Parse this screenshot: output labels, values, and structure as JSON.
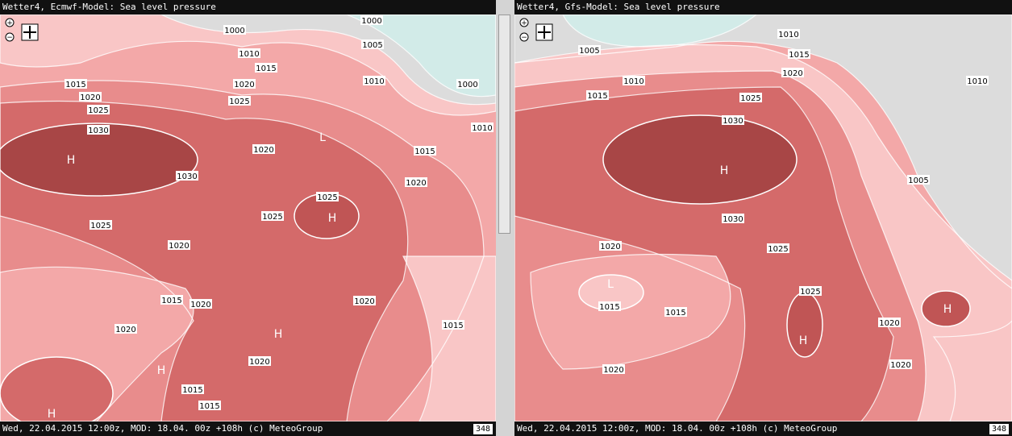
{
  "panels": [
    {
      "title": "Wetter4, Ecmwf-Model: Sea level pressure",
      "footer": "Wed, 22.04.2015 12:00z, MOD: 18.04. 00z +108h (c) MeteoGroup",
      "page": "348",
      "labels": [
        "1000",
        "1000",
        "1005",
        "1010",
        "1015",
        "1015",
        "1010",
        "1000",
        "1020",
        "1020",
        "1025",
        "1025",
        "1010",
        "1030",
        "L",
        "1020",
        "1015",
        "H",
        "1030",
        "1020",
        "1025",
        "H",
        "1025",
        "1025",
        "1020",
        "1015",
        "1020",
        "1020",
        "1015",
        "1020",
        "H",
        "1020",
        "H",
        "1015",
        "1015",
        "H"
      ]
    },
    {
      "title": "Wetter4, Gfs-Model: Sea level pressure",
      "footer": "Wed, 22.04.2015 12:00z, MOD: 18.04. 00z +108h (c) MeteoGroup",
      "page": "348",
      "labels": [
        "1010",
        "1005",
        "1015",
        "1020",
        "1010",
        "1010",
        "1015",
        "1025",
        "1030",
        "H",
        "1005",
        "1030",
        "1025",
        "1020",
        "L",
        "1015",
        "1015",
        "1025",
        "H",
        "1020",
        "H",
        "1020",
        "1020"
      ]
    }
  ]
}
